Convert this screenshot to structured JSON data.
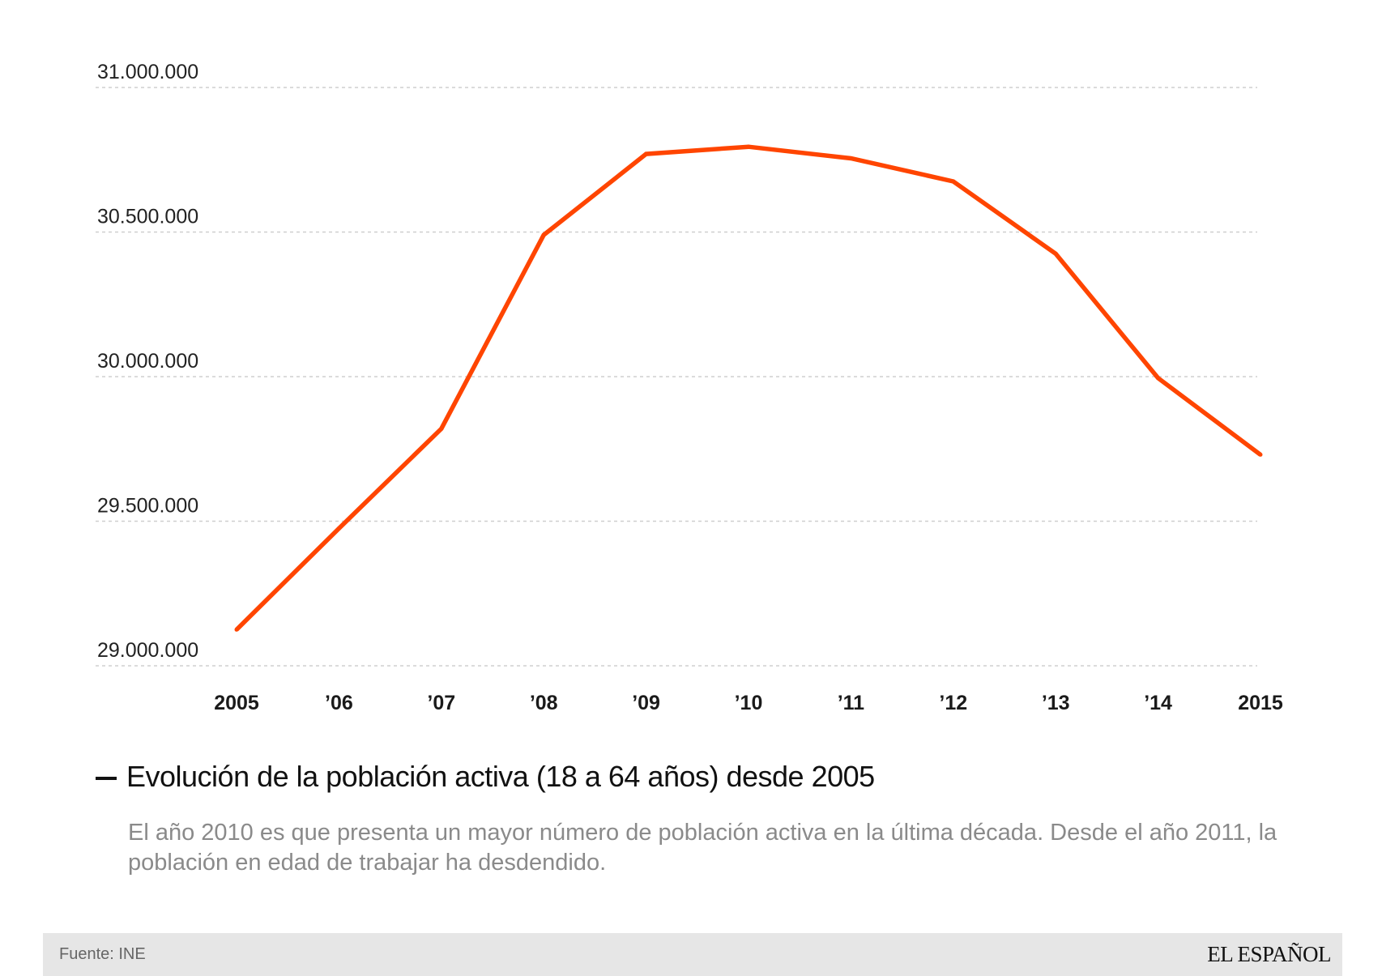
{
  "chart_data": {
    "type": "line",
    "title": "Evolución de la población activa (18 a 64 años) desde 2005",
    "description": "El año 2010 es que presenta un mayor número de población activa en la última década. Desde el año 2011, la población en edad de trabajar ha desdendido.",
    "categories": [
      "2005",
      "’06",
      "’07",
      "’08",
      "’09",
      "’10",
      "’11",
      "’12",
      "’13",
      "’14",
      "2015"
    ],
    "x": [
      2005,
      2006,
      2007,
      2008,
      2009,
      2010,
      2011,
      2012,
      2013,
      2014,
      2015
    ],
    "series": [
      {
        "values": [
          29125000,
          29475000,
          29820000,
          30490000,
          30770000,
          30795000,
          30755000,
          30675000,
          30425000,
          29995000,
          29730000
        ],
        "color": "#ff4500"
      }
    ],
    "ylim": [
      29000000,
      31000000
    ],
    "yticks": [
      29000000,
      29500000,
      30000000,
      30500000,
      31000000
    ],
    "ytick_labels": [
      "29.000.000",
      "29.500.000",
      "30.000.000",
      "30.500.000",
      "31.000.000"
    ],
    "grid": true,
    "legend": {
      "label": "Evolución de la población activa (18 a 64 años) desde 2005",
      "position": "bottom"
    }
  },
  "footer": {
    "source": "Fuente: INE",
    "brand": "EL ESPAÑOL"
  }
}
